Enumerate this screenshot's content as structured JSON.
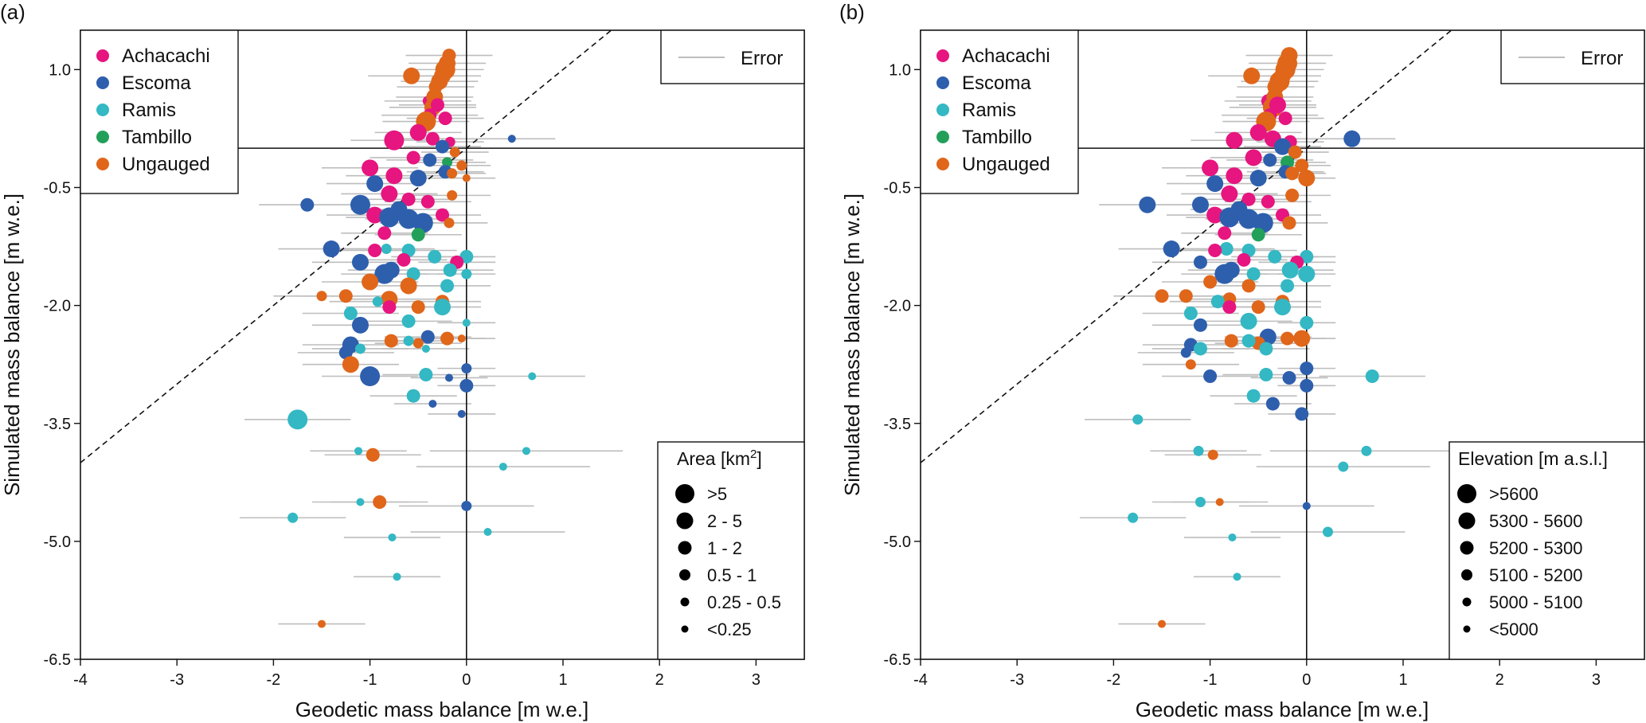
{
  "chart_data": [
    {
      "panel_label": "(a)",
      "type": "scatter",
      "xlabel": "Geodetic mass balance [m w.e.]",
      "ylabel": "Simulated mass balance [m w.e.]",
      "xlim": [
        -4,
        3.5
      ],
      "ylim": [
        -6.5,
        1.5
      ],
      "xticks": [
        -4,
        -3,
        -2,
        -1,
        0,
        1,
        2,
        3
      ],
      "xtick_labels": [
        "-4",
        "-3",
        "-2",
        "-1",
        "0",
        "1",
        "2",
        "3"
      ],
      "yticks": [
        1.0,
        -0.5,
        -2.0,
        -3.5,
        -5.0,
        -6.5
      ],
      "ytick_labels": [
        "1.0",
        "-0.5",
        "-2.0",
        "-3.5",
        "-5.0",
        "-6.5"
      ],
      "reference_lines": {
        "one_to_one": "dashed",
        "x_zero": true,
        "y_zero": true
      },
      "legend_groups": {
        "title": "",
        "entries": [
          "Achacachi",
          "Escoma",
          "Ramis",
          "Tambillo",
          "Ungauged"
        ],
        "placement": "top-left"
      },
      "error_legend": {
        "label": "Error",
        "placement": "top-right"
      },
      "size_legend": {
        "title": "Area [km²]",
        "entries": [
          ">5",
          "2 - 5",
          "1 - 2",
          "0.5 - 1",
          "0.25 - 0.5",
          "<0.25"
        ],
        "placement": "bottom-right"
      }
    },
    {
      "panel_label": "(b)",
      "type": "scatter",
      "xlabel": "Geodetic mass balance [m w.e.]",
      "ylabel": "Simulated mass balance [m w.e.]",
      "xlim": [
        -4,
        3.5
      ],
      "ylim": [
        -6.5,
        1.5
      ],
      "xticks": [
        -4,
        -3,
        -2,
        -1,
        0,
        1,
        2,
        3
      ],
      "xtick_labels": [
        "-4",
        "-3",
        "-2",
        "-1",
        "0",
        "1",
        "2",
        "3"
      ],
      "yticks": [
        1.0,
        -0.5,
        -2.0,
        -3.5,
        -5.0,
        -6.5
      ],
      "ytick_labels": [
        "1.0",
        "-0.5",
        "-2.0",
        "-3.5",
        "-5.0",
        "-6.5"
      ],
      "reference_lines": {
        "one_to_one": "dashed",
        "x_zero": true,
        "y_zero": true
      },
      "legend_groups": {
        "title": "",
        "entries": [
          "Achacachi",
          "Escoma",
          "Ramis",
          "Tambillo",
          "Ungauged"
        ],
        "placement": "top-left"
      },
      "error_legend": {
        "label": "Error",
        "placement": "top-right"
      },
      "size_legend": {
        "title": "Elevation [m a.s.l.]",
        "entries": [
          ">5600",
          "5300 - 5600",
          "5200 - 5300",
          "5100 - 5200",
          "5000 - 5100",
          "<5000"
        ],
        "placement": "bottom-right"
      }
    }
  ],
  "groups": {
    "Achacachi": "#e6157f",
    "Escoma": "#2e5fad",
    "Ramis": "#33b8c4",
    "Tambillo": "#22a05a",
    "Ungauged": "#e0661a"
  },
  "error_color": "#bdbdbd",
  "points": [
    {
      "g": "Ungauged",
      "x": -0.18,
      "y": 1.18,
      "e": 0.45,
      "sa": 3,
      "sb": 4
    },
    {
      "g": "Ungauged",
      "x": -0.2,
      "y": 1.08,
      "e": 0.4,
      "sa": 4,
      "sb": 5
    },
    {
      "g": "Ungauged",
      "x": -0.22,
      "y": 1.0,
      "e": 0.4,
      "sa": 5,
      "sb": 5
    },
    {
      "g": "Ungauged",
      "x": -0.57,
      "y": 0.92,
      "e": 0.45,
      "sa": 4,
      "sb": 4
    },
    {
      "g": "Ungauged",
      "x": -0.25,
      "y": 0.92,
      "e": 0.4,
      "sa": 4,
      "sb": 4
    },
    {
      "g": "Ungauged",
      "x": -0.28,
      "y": 0.85,
      "e": 0.4,
      "sa": 4,
      "sb": 5
    },
    {
      "g": "Ungauged",
      "x": -0.32,
      "y": 0.78,
      "e": 0.4,
      "sa": 3,
      "sb": 4
    },
    {
      "g": "Achacachi",
      "x": -0.4,
      "y": 0.6,
      "e": 0.45,
      "sa": 2,
      "sb": 3
    },
    {
      "g": "Ungauged",
      "x": -0.33,
      "y": 0.65,
      "e": 0.4,
      "sa": 4,
      "sb": 4
    },
    {
      "g": "Ungauged",
      "x": -0.35,
      "y": 0.52,
      "e": 0.45,
      "sa": 4,
      "sb": 5
    },
    {
      "g": "Achacachi",
      "x": -0.3,
      "y": 0.55,
      "e": 0.4,
      "sa": 3,
      "sb": 4
    },
    {
      "g": "Achacachi",
      "x": -0.38,
      "y": 0.42,
      "e": 0.5,
      "sa": 3,
      "sb": 3
    },
    {
      "g": "Ungauged",
      "x": -0.42,
      "y": 0.34,
      "e": 0.45,
      "sa": 5,
      "sb": 5
    },
    {
      "g": "Achacachi",
      "x": -0.22,
      "y": 0.38,
      "e": 0.4,
      "sa": 3,
      "sb": 3
    },
    {
      "g": "Achacachi",
      "x": -0.75,
      "y": 0.1,
      "e": 0.45,
      "sa": 5,
      "sb": 4
    },
    {
      "g": "Achacachi",
      "x": -0.5,
      "y": 0.2,
      "e": 0.45,
      "sa": 4,
      "sb": 4
    },
    {
      "g": "Achacachi",
      "x": -0.35,
      "y": 0.12,
      "e": 0.45,
      "sa": 3,
      "sb": 4
    },
    {
      "g": "Achacachi",
      "x": -0.17,
      "y": 0.08,
      "e": 0.35,
      "sa": 2,
      "sb": 3
    },
    {
      "g": "Escoma",
      "x": -0.25,
      "y": 0.02,
      "e": 0.4,
      "sa": 3,
      "sb": 4
    },
    {
      "g": "Escoma",
      "x": 0.47,
      "y": 0.12,
      "e": 0.45,
      "sa": 1,
      "sb": 4
    },
    {
      "g": "Ungauged",
      "x": -0.12,
      "y": -0.05,
      "e": 0.35,
      "sa": 2,
      "sb": 3
    },
    {
      "g": "Achacachi",
      "x": -1.0,
      "y": -0.25,
      "e": 0.5,
      "sa": 4,
      "sb": 4
    },
    {
      "g": "Achacachi",
      "x": -0.55,
      "y": -0.12,
      "e": 0.45,
      "sa": 3,
      "sb": 4
    },
    {
      "g": "Escoma",
      "x": -0.38,
      "y": -0.15,
      "e": 0.45,
      "sa": 3,
      "sb": 3
    },
    {
      "g": "Tambillo",
      "x": -0.2,
      "y": -0.18,
      "e": 0.4,
      "sa": 2,
      "sb": 3
    },
    {
      "g": "Achacachi",
      "x": -0.75,
      "y": -0.35,
      "e": 0.5,
      "sa": 4,
      "sb": 4
    },
    {
      "g": "Escoma",
      "x": -0.5,
      "y": -0.38,
      "e": 0.45,
      "sa": 4,
      "sb": 4
    },
    {
      "g": "Escoma",
      "x": -0.95,
      "y": -0.45,
      "e": 0.5,
      "sa": 4,
      "sb": 4
    },
    {
      "g": "Escoma",
      "x": -0.22,
      "y": -0.3,
      "e": 0.4,
      "sa": 3,
      "sb": 3
    },
    {
      "g": "Ungauged",
      "x": -0.15,
      "y": -0.32,
      "e": 0.35,
      "sa": 2,
      "sb": 3
    },
    {
      "g": "Ungauged",
      "x": -0.05,
      "y": -0.22,
      "e": 0.3,
      "sa": 2,
      "sb": 3
    },
    {
      "g": "Ungauged",
      "x": 0.0,
      "y": -0.38,
      "e": 0.3,
      "sa": 1,
      "sb": 4
    },
    {
      "g": "Achacachi",
      "x": -0.8,
      "y": -0.58,
      "e": 0.5,
      "sa": 4,
      "sb": 4
    },
    {
      "g": "Achacachi",
      "x": -0.6,
      "y": -0.65,
      "e": 0.45,
      "sa": 3,
      "sb": 3
    },
    {
      "g": "Escoma",
      "x": -1.65,
      "y": -0.72,
      "e": 0.5,
      "sa": 3,
      "sb": 4
    },
    {
      "g": "Escoma",
      "x": -1.1,
      "y": -0.72,
      "e": 0.5,
      "sa": 5,
      "sb": 4
    },
    {
      "g": "Achacachi",
      "x": -0.4,
      "y": -0.68,
      "e": 0.45,
      "sa": 3,
      "sb": 3
    },
    {
      "g": "Ungauged",
      "x": -0.15,
      "y": -0.6,
      "e": 0.4,
      "sa": 2,
      "sb": 3
    },
    {
      "g": "Escoma",
      "x": -0.7,
      "y": -0.78,
      "e": 0.5,
      "sa": 4,
      "sb": 4
    },
    {
      "g": "Achacachi",
      "x": -0.95,
      "y": -0.85,
      "e": 0.5,
      "sa": 4,
      "sb": 4
    },
    {
      "g": "Escoma",
      "x": -0.8,
      "y": -0.88,
      "e": 0.45,
      "sa": 5,
      "sb": 5
    },
    {
      "g": "Escoma",
      "x": -0.6,
      "y": -0.9,
      "e": 0.45,
      "sa": 5,
      "sb": 5
    },
    {
      "g": "Escoma",
      "x": -0.45,
      "y": -0.95,
      "e": 0.45,
      "sa": 5,
      "sb": 5
    },
    {
      "g": "Achacachi",
      "x": -0.25,
      "y": -0.85,
      "e": 0.4,
      "sa": 3,
      "sb": 3
    },
    {
      "g": "Ungauged",
      "x": -0.18,
      "y": -0.95,
      "e": 0.4,
      "sa": 2,
      "sb": 3
    },
    {
      "g": "Tambillo",
      "x": -0.5,
      "y": -1.1,
      "e": 0.45,
      "sa": 3,
      "sb": 3
    },
    {
      "g": "Achacachi",
      "x": -0.85,
      "y": -1.08,
      "e": 0.45,
      "sa": 3,
      "sb": 3
    },
    {
      "g": "Escoma",
      "x": -1.4,
      "y": -1.28,
      "e": 0.55,
      "sa": 4,
      "sb": 4
    },
    {
      "g": "Ramis",
      "x": -0.6,
      "y": -1.3,
      "e": 0.5,
      "sa": 3,
      "sb": 3
    },
    {
      "g": "Ramis",
      "x": -0.83,
      "y": -1.28,
      "e": 0.5,
      "sa": 2,
      "sb": 3
    },
    {
      "g": "Achacachi",
      "x": -0.95,
      "y": -1.3,
      "e": 0.45,
      "sa": 3,
      "sb": 3
    },
    {
      "g": "Ramis",
      "x": 0.0,
      "y": -1.38,
      "e": 0.3,
      "sa": 3,
      "sb": 3
    },
    {
      "g": "Escoma",
      "x": -1.1,
      "y": -1.45,
      "e": 0.5,
      "sa": 4,
      "sb": 3
    },
    {
      "g": "Ramis",
      "x": -0.33,
      "y": -1.38,
      "e": 0.45,
      "sa": 3,
      "sb": 3
    },
    {
      "g": "Achacachi",
      "x": -0.65,
      "y": -1.42,
      "e": 0.45,
      "sa": 3,
      "sb": 3
    },
    {
      "g": "Achacachi",
      "x": -0.1,
      "y": -1.45,
      "e": 0.4,
      "sa": 3,
      "sb": 3
    },
    {
      "g": "Ramis",
      "x": -0.17,
      "y": -1.55,
      "e": 0.45,
      "sa": 3,
      "sb": 4
    },
    {
      "g": "Escoma",
      "x": -0.85,
      "y": -1.6,
      "e": 0.45,
      "sa": 5,
      "sb": 5
    },
    {
      "g": "Escoma",
      "x": -0.78,
      "y": -1.55,
      "e": 0.45,
      "sa": 4,
      "sb": 4
    },
    {
      "g": "Ramis",
      "x": -0.55,
      "y": -1.6,
      "e": 0.45,
      "sa": 3,
      "sb": 3
    },
    {
      "g": "Ramis",
      "x": 0.0,
      "y": -1.6,
      "e": 0.3,
      "sa": 2,
      "sb": 4
    },
    {
      "g": "Ungauged",
      "x": -1.0,
      "y": -1.7,
      "e": 0.5,
      "sa": 4,
      "sb": 3
    },
    {
      "g": "Ungauged",
      "x": -0.6,
      "y": -1.75,
      "e": 0.45,
      "sa": 4,
      "sb": 3
    },
    {
      "g": "Ramis",
      "x": -0.2,
      "y": -1.75,
      "e": 0.45,
      "sa": 3,
      "sb": 3
    },
    {
      "g": "Ungauged",
      "x": -1.25,
      "y": -1.88,
      "e": 0.5,
      "sa": 3,
      "sb": 3
    },
    {
      "g": "Ungauged",
      "x": -0.8,
      "y": -1.92,
      "e": 0.5,
      "sa": 4,
      "sb": 3
    },
    {
      "g": "Ramis",
      "x": -0.92,
      "y": -1.95,
      "e": 0.5,
      "sa": 2,
      "sb": 3
    },
    {
      "g": "Ungauged",
      "x": -0.5,
      "y": -2.02,
      "e": 0.45,
      "sa": 3,
      "sb": 3
    },
    {
      "g": "Ungauged",
      "x": -0.25,
      "y": -1.95,
      "e": 0.4,
      "sa": 3,
      "sb": 3
    },
    {
      "g": "Ramis",
      "x": -0.25,
      "y": -2.02,
      "e": 0.4,
      "sa": 4,
      "sb": 4
    },
    {
      "g": "Achacachi",
      "x": -0.8,
      "y": -2.02,
      "e": 0.45,
      "sa": 3,
      "sb": 3
    },
    {
      "g": "Ungauged",
      "x": -1.5,
      "y": -1.88,
      "e": 0.5,
      "sa": 2,
      "sb": 3
    },
    {
      "g": "Ramis",
      "x": -1.2,
      "y": -2.1,
      "e": 0.5,
      "sa": 3,
      "sb": 3
    },
    {
      "g": "Escoma",
      "x": -1.1,
      "y": -2.25,
      "e": 0.5,
      "sa": 4,
      "sb": 3
    },
    {
      "g": "Ramis",
      "x": -0.6,
      "y": -2.2,
      "e": 0.45,
      "sa": 3,
      "sb": 4
    },
    {
      "g": "Ramis",
      "x": 0.0,
      "y": -2.22,
      "e": 0.3,
      "sa": 1,
      "sb": 3
    },
    {
      "g": "Escoma",
      "x": -0.4,
      "y": -2.4,
      "e": 0.45,
      "sa": 3,
      "sb": 4
    },
    {
      "g": "Ungauged",
      "x": -0.78,
      "y": -2.45,
      "e": 0.45,
      "sa": 3,
      "sb": 3
    },
    {
      "g": "Ungauged",
      "x": -0.5,
      "y": -2.48,
      "e": 0.45,
      "sa": 2,
      "sb": 3
    },
    {
      "g": "Ungauged",
      "x": -0.2,
      "y": -2.42,
      "e": 0.4,
      "sa": 3,
      "sb": 3
    },
    {
      "g": "Ungauged",
      "x": -0.05,
      "y": -2.42,
      "e": 0.35,
      "sa": 1,
      "sb": 4
    },
    {
      "g": "Escoma",
      "x": -1.2,
      "y": -2.5,
      "e": 0.5,
      "sa": 4,
      "sb": 3
    },
    {
      "g": "Escoma",
      "x": -1.25,
      "y": -2.6,
      "e": 0.5,
      "sa": 3,
      "sb": 2
    },
    {
      "g": "Ramis",
      "x": -1.1,
      "y": -2.55,
      "e": 0.5,
      "sa": 2,
      "sb": 3
    },
    {
      "g": "Ramis",
      "x": -0.6,
      "y": -2.45,
      "e": 0.45,
      "sa": 2,
      "sb": 3
    },
    {
      "g": "Ramis",
      "x": -0.42,
      "y": -2.55,
      "e": 0.45,
      "sa": 1,
      "sb": 3
    },
    {
      "g": "Ungauged",
      "x": -1.2,
      "y": -2.75,
      "e": 0.5,
      "sa": 4,
      "sb": 2
    },
    {
      "g": "Escoma",
      "x": -1.0,
      "y": -2.9,
      "e": 0.5,
      "sa": 5,
      "sb": 3
    },
    {
      "g": "Escoma",
      "x": 0.0,
      "y": -2.8,
      "e": 0.3,
      "sa": 2,
      "sb": 3
    },
    {
      "g": "Ramis",
      "x": -0.42,
      "y": -2.88,
      "e": 0.45,
      "sa": 3,
      "sb": 3
    },
    {
      "g": "Escoma",
      "x": -0.18,
      "y": -2.92,
      "e": 0.4,
      "sa": 1,
      "sb": 3
    },
    {
      "g": "Ramis",
      "x": 0.68,
      "y": -2.9,
      "e": 0.55,
      "sa": 1,
      "sb": 3
    },
    {
      "g": "Escoma",
      "x": 0.0,
      "y": -3.02,
      "e": 0.3,
      "sa": 3,
      "sb": 3
    },
    {
      "g": "Ramis",
      "x": -0.55,
      "y": -3.15,
      "e": 0.45,
      "sa": 3,
      "sb": 3
    },
    {
      "g": "Escoma",
      "x": -0.05,
      "y": -3.38,
      "e": 0.35,
      "sa": 1,
      "sb": 3
    },
    {
      "g": "Escoma",
      "x": -0.35,
      "y": -3.25,
      "e": 0.4,
      "sa": 1,
      "sb": 3
    },
    {
      "g": "Ramis",
      "x": -1.75,
      "y": -3.45,
      "e": 0.55,
      "sa": 5,
      "sb": 2
    },
    {
      "g": "Ramis",
      "x": -1.12,
      "y": -3.85,
      "e": 0.5,
      "sa": 1,
      "sb": 2
    },
    {
      "g": "Ungauged",
      "x": -0.97,
      "y": -3.9,
      "e": 0.5,
      "sa": 3,
      "sb": 2
    },
    {
      "g": "Ramis",
      "x": 0.62,
      "y": -3.85,
      "e": 1.0,
      "sa": 1,
      "sb": 2
    },
    {
      "g": "Ramis",
      "x": 0.38,
      "y": -4.05,
      "e": 0.9,
      "sa": 1,
      "sb": 2
    },
    {
      "g": "Ramis",
      "x": -1.1,
      "y": -4.5,
      "e": 0.5,
      "sa": 1,
      "sb": 2
    },
    {
      "g": "Ungauged",
      "x": -0.9,
      "y": -4.5,
      "e": 0.5,
      "sa": 3,
      "sb": 1
    },
    {
      "g": "Escoma",
      "x": 0.0,
      "y": -4.55,
      "e": 0.7,
      "sa": 2,
      "sb": 1
    },
    {
      "g": "Ramis",
      "x": -1.8,
      "y": -4.7,
      "e": 0.55,
      "sa": 2,
      "sb": 2
    },
    {
      "g": "Ramis",
      "x": -0.77,
      "y": -4.95,
      "e": 0.5,
      "sa": 1,
      "sb": 1
    },
    {
      "g": "Ramis",
      "x": 0.22,
      "y": -4.88,
      "e": 0.8,
      "sa": 1,
      "sb": 2
    },
    {
      "g": "Ramis",
      "x": -0.72,
      "y": -5.45,
      "e": 0.45,
      "sa": 1,
      "sb": 1
    },
    {
      "g": "Ungauged",
      "x": -1.5,
      "y": -6.05,
      "e": 0.45,
      "sa": 1,
      "sb": 1
    }
  ]
}
